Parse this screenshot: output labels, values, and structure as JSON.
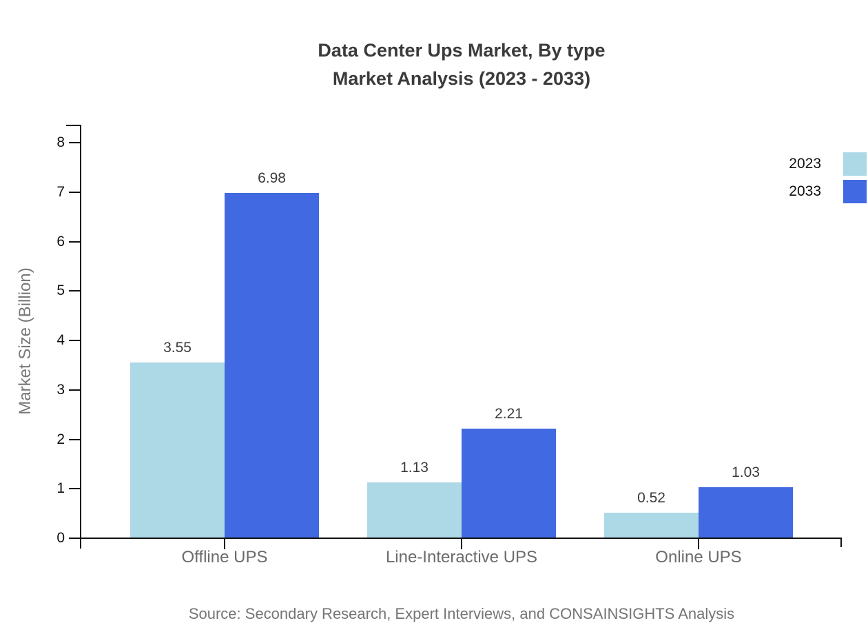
{
  "title": {
    "line1": "Data Center Ups Market, By type",
    "line2": "Market Analysis (2023 - 2033)"
  },
  "source": "Source: Secondary Research, Expert Interviews, and CONSAINSIGHTS Analysis",
  "y_axis": {
    "label": "Market Size (Billion)"
  },
  "legend": {
    "items": [
      {
        "label": "2023",
        "color": "#add8e6"
      },
      {
        "label": "2033",
        "color": "#4169e1"
      }
    ],
    "position": "top-right"
  },
  "chart_data": {
    "type": "bar",
    "title": "Data Center Ups Market, By type — Market Analysis (2023 - 2033)",
    "categories": [
      "Offline UPS",
      "Line-Interactive UPS",
      "Online UPS"
    ],
    "series": [
      {
        "name": "2023",
        "color": "#add8e6",
        "values": [
          3.55,
          1.13,
          0.52
        ]
      },
      {
        "name": "2033",
        "color": "#4169e1",
        "values": [
          6.98,
          2.21,
          1.03
        ]
      }
    ],
    "value_labels": [
      "3.55",
      "6.98",
      "1.13",
      "2.21",
      "0.52",
      "1.03"
    ],
    "xlabel": "",
    "ylabel": "Market Size (Billion)",
    "ylim": [
      0,
      8
    ],
    "y_ticks": [
      0,
      1,
      2,
      3,
      4,
      5,
      6,
      7,
      8
    ],
    "grid": false,
    "legend_position": "top-right",
    "background": "#ffffff",
    "axis_color": "#111111"
  }
}
